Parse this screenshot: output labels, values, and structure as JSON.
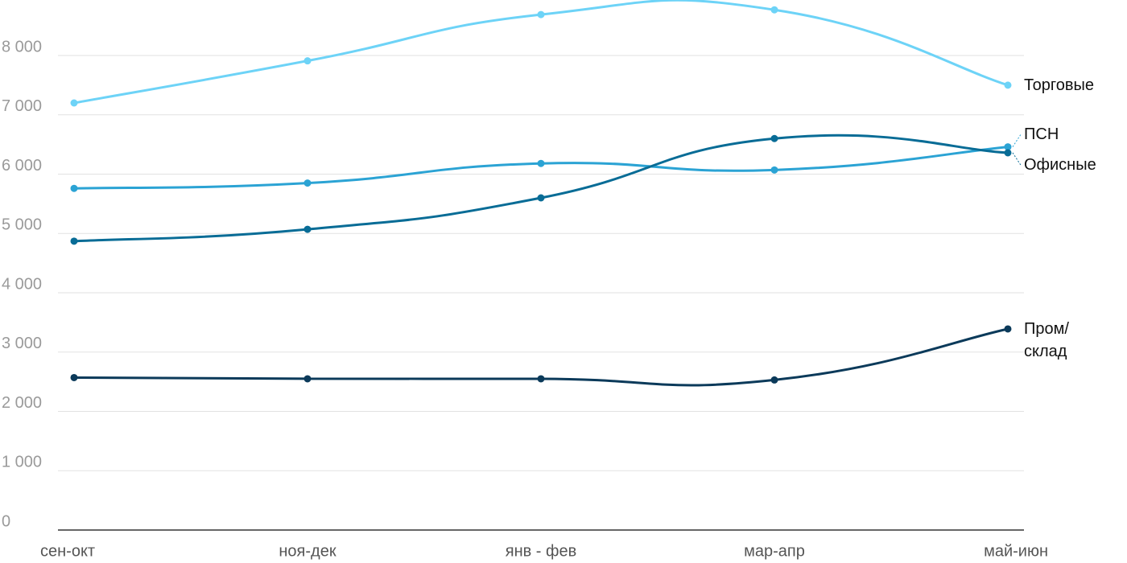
{
  "chart_data": {
    "type": "line",
    "categories": [
      "сен-окт",
      "ноя-дек",
      "янв - фев",
      "мар-апр",
      "май-июн"
    ],
    "series": [
      {
        "name": "Торговые",
        "color": "#6dd3f7",
        "values": [
          7200,
          7910,
          8690,
          8770,
          7500
        ]
      },
      {
        "name": "ПСН",
        "color": "#2ba3d4",
        "values": [
          5760,
          5850,
          6180,
          6070,
          6460
        ]
      },
      {
        "name": "Офисные",
        "color": "#086c96",
        "values": [
          4870,
          5070,
          5600,
          6600,
          6360
        ]
      },
      {
        "name": "Пром/ склад",
        "color": "#0b3a5a",
        "values": [
          2570,
          2550,
          2550,
          2530,
          3390
        ]
      }
    ],
    "ylim": [
      0,
      8800
    ],
    "yticks": [
      0,
      {
        "value": 1000,
        "label": "1 000"
      },
      {
        "value": 2000,
        "label": "2 000"
      },
      {
        "value": 3000,
        "label": "3 000"
      },
      {
        "value": 4000,
        "label": "4 000"
      },
      {
        "value": 5000,
        "label": "5 000"
      },
      {
        "value": 6000,
        "label": "6 000"
      },
      {
        "value": 7000,
        "label": "7 000"
      },
      {
        "value": 8000,
        "label": "8 000"
      }
    ],
    "grid": true
  }
}
